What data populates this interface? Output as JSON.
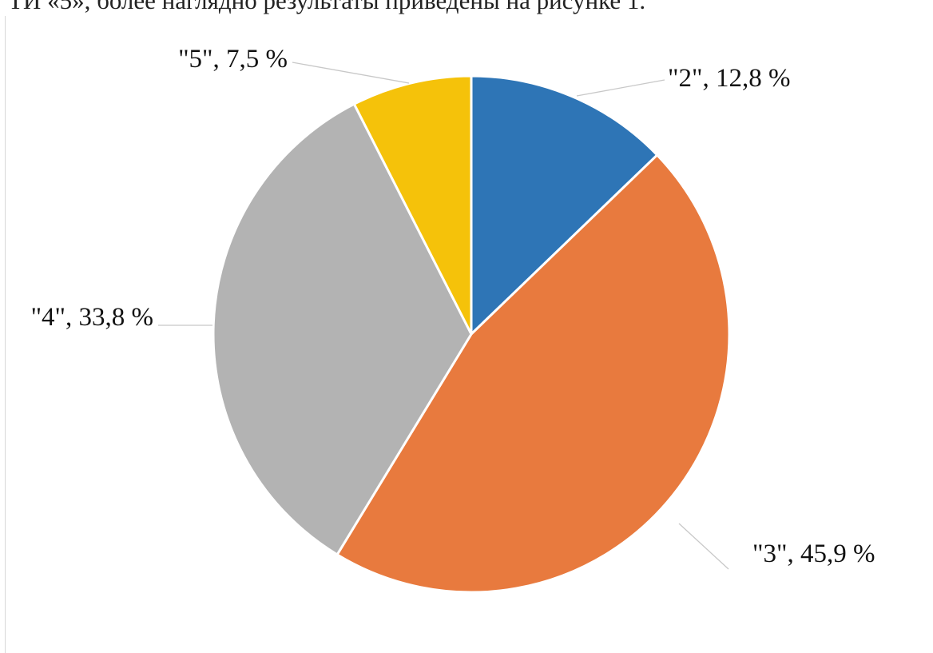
{
  "header_text": "ТИ «5», более наглядно результаты приведены на рисунке 1.",
  "chart_data": {
    "type": "pie",
    "categories": [
      "\"2\"",
      "\"3\"",
      "\"4\"",
      "\"5\""
    ],
    "values": [
      12.8,
      45.9,
      33.8,
      7.5
    ],
    "data_labels": [
      "\"2\", 12,8 %",
      "\"3\", 45,9 %",
      "\"4\", 33,8 %",
      "\"5\", 7,5 %"
    ],
    "colors": [
      "#2e75b6",
      "#e87a3e",
      "#b3b3b3",
      "#f5c20a"
    ],
    "start_angle": "12 o'clock",
    "direction": "clockwise",
    "legend": "none",
    "title": ""
  }
}
